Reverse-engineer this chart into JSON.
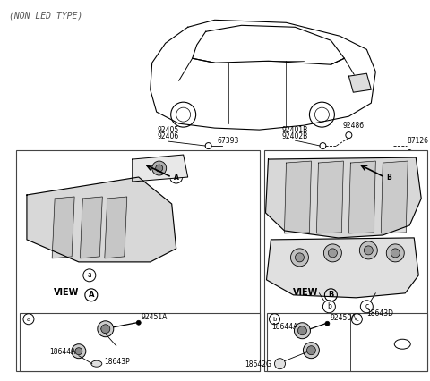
{
  "title": "(NON LED TYPE)",
  "bg_color": "#ffffff",
  "line_color": "#000000",
  "gray_color": "#888888",
  "light_gray": "#cccccc",
  "box_line_color": "#444444",
  "part_labels": {
    "top_left_stack": [
      "92405",
      "92406"
    ],
    "top_mid_bolt": "67393",
    "top_right_stack": [
      "92401B",
      "92402B"
    ],
    "top_right_screw": "92486",
    "far_right": "87126"
  },
  "view_a_labels": {
    "part1": "92451A",
    "part2": "18644A",
    "part3": "18643P"
  },
  "view_b_labels": {
    "part1": "92450A",
    "part2": "18644A",
    "part3": "18642G",
    "part4": "18643D"
  },
  "font_size_title": 7,
  "font_size_label": 5.5,
  "font_size_view": 7,
  "font_size_part": 5.5
}
